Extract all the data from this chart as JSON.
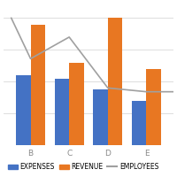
{
  "categories": [
    "B",
    "C",
    "D",
    "E"
  ],
  "expenses": [
    55,
    52,
    44,
    35
  ],
  "revenue": [
    95,
    65,
    100,
    60
  ],
  "employees_x": [
    -0.5,
    0,
    1,
    2,
    3,
    4.2
  ],
  "employees_y": [
    100,
    68,
    85,
    45,
    42,
    42
  ],
  "bar_color_expenses": "#4472c4",
  "bar_color_revenue": "#e87722",
  "line_color_employees": "#a0a0a0",
  "background_color": "#ffffff",
  "ylim": [
    0,
    110
  ],
  "bar_width": 0.38,
  "legend_labels": [
    "EXPENSES",
    "REVENUE",
    "EMPLOYEES"
  ],
  "legend_fontsize": 5.5,
  "tick_fontsize": 6.5,
  "grid_color": "#d8d8d8",
  "grid_linewidth": 0.6
}
